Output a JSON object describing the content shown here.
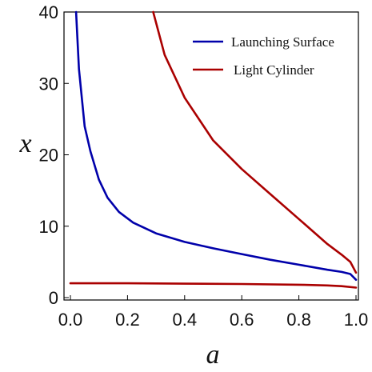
{
  "chart_data": {
    "type": "line",
    "xlabel": "a",
    "ylabel": "x",
    "xlim": [
      0.0,
      1.0
    ],
    "ylim": [
      0,
      40
    ],
    "xticks": [
      "0.0",
      "0.2",
      "0.4",
      "0.6",
      "0.8",
      "1.0"
    ],
    "yticks": [
      "0",
      "10",
      "20",
      "30",
      "40"
    ],
    "grid": false,
    "legend_position": "top-right",
    "legend": [
      {
        "label": "Launching Surface",
        "color": "#0000aa"
      },
      {
        "label": "Light Cylinder",
        "color": "#aa0000"
      }
    ],
    "series": [
      {
        "name": "Launching Surface",
        "color": "#0000aa",
        "x": [
          0.02,
          0.03,
          0.05,
          0.07,
          0.1,
          0.13,
          0.17,
          0.22,
          0.3,
          0.4,
          0.5,
          0.6,
          0.7,
          0.8,
          0.9,
          0.95,
          0.98,
          1.0
        ],
        "y": [
          40,
          32,
          24,
          20.5,
          16.5,
          14,
          12,
          10.5,
          9,
          7.8,
          6.9,
          6.1,
          5.3,
          4.6,
          3.9,
          3.6,
          3.3,
          2.5
        ]
      },
      {
        "name": "Light Cylinder",
        "color": "#aa0000",
        "x": [
          0.29,
          0.33,
          0.4,
          0.5,
          0.6,
          0.7,
          0.8,
          0.9,
          0.95,
          0.98,
          1.0
        ],
        "y": [
          40,
          34,
          28,
          22,
          18,
          14.5,
          11,
          7.5,
          6,
          5,
          3.5
        ]
      },
      {
        "name": "",
        "color": "#aa0000",
        "x": [
          0.0,
          0.2,
          0.4,
          0.6,
          0.8,
          0.9,
          0.95,
          1.0
        ],
        "y": [
          2.0,
          2.0,
          1.95,
          1.9,
          1.8,
          1.7,
          1.6,
          1.4
        ]
      }
    ]
  }
}
